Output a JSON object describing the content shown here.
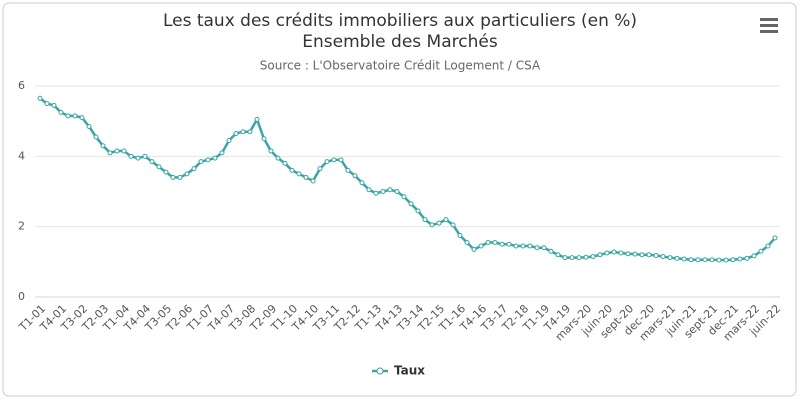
{
  "chart_data": {
    "type": "line",
    "title": [
      "Les taux des crédits immobiliers aux particuliers (en %)",
      "Ensemble des Marchés"
    ],
    "subtitle": "Source : L'Observatoire Crédit Logement / CSA",
    "categories": [
      "T1-01",
      null,
      null,
      "T4-01",
      null,
      null,
      "T3-02",
      null,
      null,
      "T2-03",
      null,
      null,
      "T1-04",
      null,
      null,
      "T4-04",
      null,
      null,
      "T3-05",
      null,
      null,
      "T2-06",
      null,
      null,
      "T1-07",
      null,
      null,
      "T4-07",
      null,
      null,
      "T3-08",
      null,
      null,
      "T2-09",
      null,
      null,
      "T1-10",
      null,
      null,
      "T4-10",
      null,
      null,
      "T3-11",
      null,
      null,
      "T2-12",
      null,
      null,
      "T1-13",
      null,
      null,
      "T4-13",
      null,
      null,
      "T3-14",
      null,
      null,
      "T2-15",
      null,
      null,
      "T1-16",
      null,
      null,
      "T4-16",
      null,
      null,
      "T3-17",
      null,
      null,
      "T2-18",
      null,
      null,
      "T1-19",
      null,
      null,
      "T4-19",
      null,
      null,
      "mars-20",
      null,
      null,
      "juin-20",
      null,
      null,
      "sept-20",
      null,
      null,
      "dec-20",
      null,
      null,
      "mars-21",
      null,
      null,
      "juin-21",
      null,
      null,
      "sept-21",
      null,
      null,
      "dec-21",
      null,
      null,
      "mars-22",
      null,
      null,
      "juin-22"
    ],
    "series": [
      {
        "name": "Taux",
        "color": "#3aa5a5",
        "values": [
          5.65,
          5.5,
          5.45,
          5.25,
          5.15,
          5.15,
          5.1,
          4.85,
          4.55,
          4.3,
          4.1,
          4.15,
          4.15,
          4.0,
          3.95,
          4.0,
          3.85,
          3.7,
          3.55,
          3.4,
          3.4,
          3.5,
          3.65,
          3.85,
          3.9,
          3.95,
          4.1,
          4.45,
          4.65,
          4.7,
          4.7,
          5.05,
          4.5,
          4.15,
          3.95,
          3.8,
          3.6,
          3.5,
          3.4,
          3.3,
          3.65,
          3.85,
          3.9,
          3.9,
          3.6,
          3.45,
          3.25,
          3.05,
          2.95,
          3.0,
          3.05,
          3.0,
          2.85,
          2.65,
          2.45,
          2.2,
          2.05,
          2.1,
          2.2,
          2.05,
          1.75,
          1.55,
          1.35,
          1.45,
          1.55,
          1.55,
          1.5,
          1.5,
          1.45,
          1.45,
          1.45,
          1.4,
          1.4,
          1.3,
          1.2,
          1.12,
          1.12,
          1.12,
          1.13,
          1.15,
          1.2,
          1.25,
          1.28,
          1.25,
          1.23,
          1.22,
          1.2,
          1.2,
          1.18,
          1.15,
          1.12,
          1.1,
          1.08,
          1.06,
          1.06,
          1.06,
          1.06,
          1.05,
          1.05,
          1.06,
          1.08,
          1.1,
          1.17,
          1.3,
          1.45,
          1.68
        ]
      }
    ],
    "ylim": [
      0,
      6
    ],
    "yticks": [
      0,
      2,
      4,
      6
    ],
    "grid": true,
    "legend": "bottom"
  }
}
